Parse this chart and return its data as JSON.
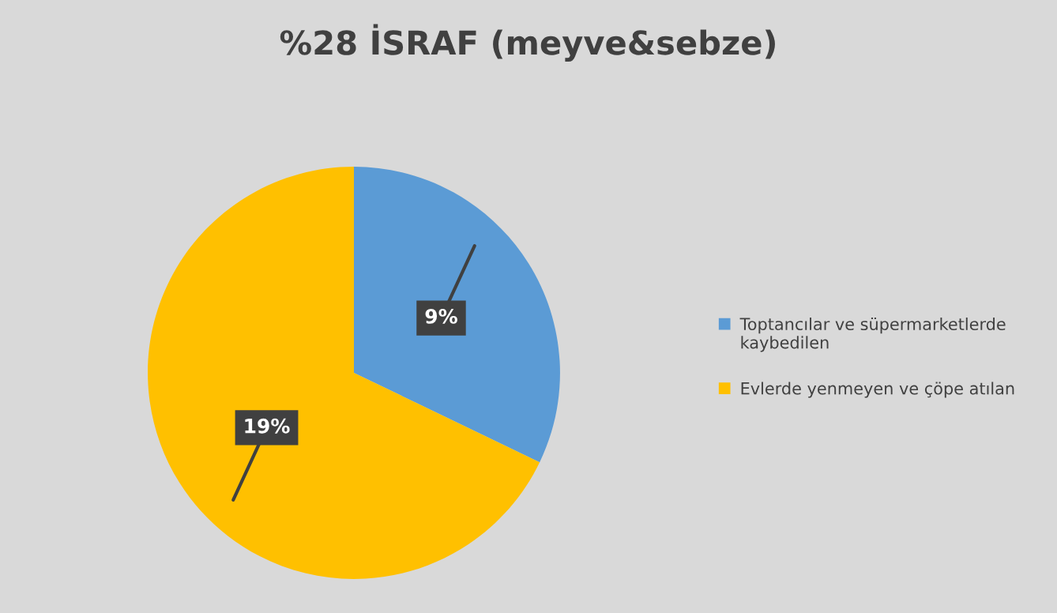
{
  "chart_data": {
    "type": "pie",
    "title": "%28 İSRAF (meyve&sebze)",
    "categories": [
      "Toptancılar ve süpermarketlerde kaybedilen",
      "Evlerde yenmeyen ve çöpe atılan"
    ],
    "values": [
      9,
      19
    ],
    "colors": [
      "#5b9bd5",
      "#ffc000"
    ],
    "value_labels": [
      "9%",
      "19%"
    ],
    "legend": "right"
  }
}
